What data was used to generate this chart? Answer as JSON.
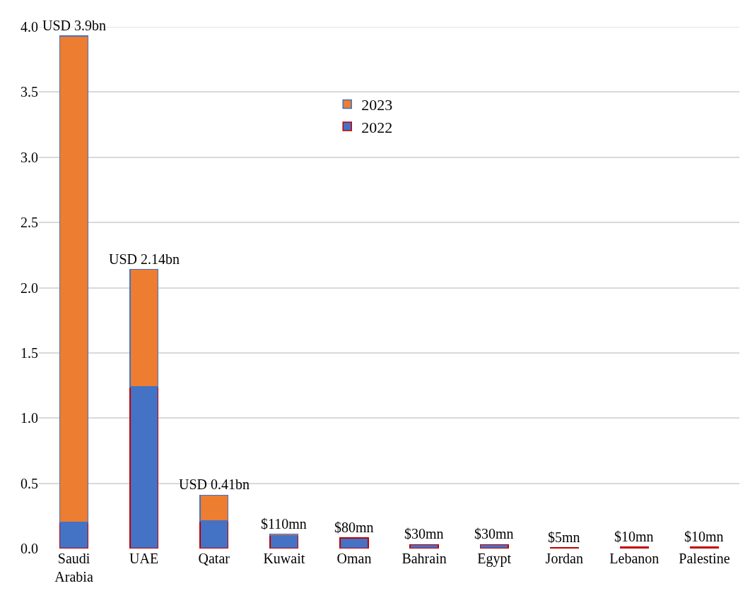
{
  "chart_data": {
    "type": "bar",
    "stacked": true,
    "categories": [
      "Saudi Arabia",
      "UAE",
      "Qatar",
      "Kuwait",
      "Oman",
      "Bahrain",
      "Egypt",
      "Jordan",
      "Lebanon",
      "Palestine"
    ],
    "series": [
      {
        "name": "2022",
        "color": "#4472c4",
        "values": [
          0.2,
          1.24,
          0.21,
          0.1,
          0.08,
          0.03,
          0.03,
          0.005,
          0.01,
          0.01
        ]
      },
      {
        "name": "2023",
        "color": "#ed7d31",
        "values": [
          3.73,
          0.9,
          0.2,
          0.01,
          null,
          null,
          null,
          null,
          null,
          null
        ]
      }
    ],
    "totals": [
      "USD 3.9bn",
      "USD 2.14bn",
      "USD 0.41bn",
      "$110mn",
      "$80mn",
      "$30mn",
      "$30mn",
      "$5mn",
      "$10mn",
      "$10mn"
    ],
    "ylim": [
      0,
      4.0
    ],
    "yticks": [
      {
        "value": 0,
        "label": "0.0"
      },
      {
        "value": 0.5,
        "label": "0.5"
      },
      {
        "value": 1,
        "label": "1.0"
      },
      {
        "value": 1.5,
        "label": "1.5"
      },
      {
        "value": 2,
        "label": "2.0"
      },
      {
        "value": 2.5,
        "label": "2.5"
      },
      {
        "value": 3,
        "label": "3.0"
      },
      {
        "value": 3.5,
        "label": "3.5"
      },
      {
        "value": 4,
        "label": "4.0"
      }
    ],
    "grid": "y",
    "legend": "top"
  }
}
